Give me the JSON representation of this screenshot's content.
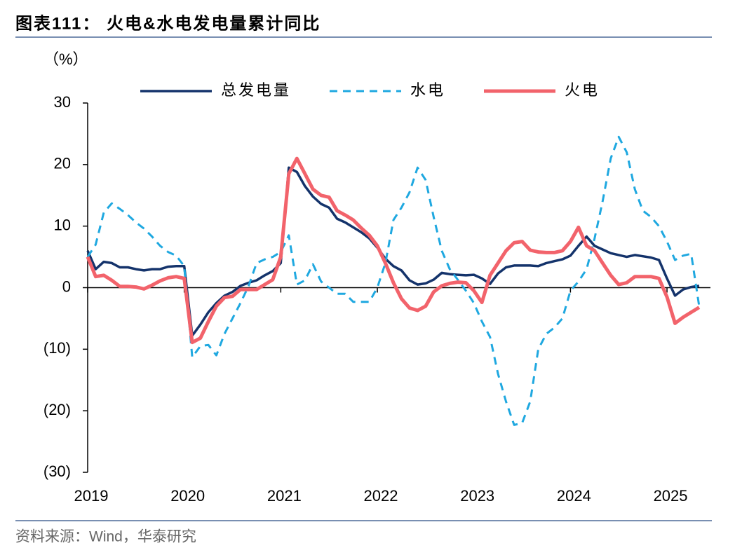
{
  "chart_data": {
    "type": "line",
    "title": "图表111： 火电&水电发电量累计同比",
    "y_axis_label": "（%）",
    "source": "资料来源：Wind，华泰研究",
    "xlim": [
      2019,
      2025.45
    ],
    "xticks": [
      2019,
      2020,
      2021,
      2022,
      2023,
      2024,
      2025
    ],
    "ylim": [
      -30,
      30
    ],
    "yticks": [
      30,
      20,
      10,
      0,
      {
        "value": -10,
        "label": "(10)"
      },
      {
        "value": -20,
        "label": "(20)"
      },
      {
        "value": -30,
        "label": "(30)"
      }
    ],
    "x": [
      2019.0,
      2019.083,
      2019.167,
      2019.25,
      2019.333,
      2019.417,
      2019.5,
      2019.583,
      2019.667,
      2019.75,
      2019.833,
      2019.917,
      2020.0,
      2020.083,
      2020.167,
      2020.25,
      2020.333,
      2020.417,
      2020.5,
      2020.583,
      2020.667,
      2020.75,
      2020.833,
      2020.917,
      2021.0,
      2021.083,
      2021.167,
      2021.25,
      2021.333,
      2021.417,
      2021.5,
      2021.583,
      2021.667,
      2021.75,
      2021.833,
      2021.917,
      2022.0,
      2022.083,
      2022.167,
      2022.25,
      2022.333,
      2022.417,
      2022.5,
      2022.583,
      2022.667,
      2022.75,
      2022.833,
      2022.917,
      2023.0,
      2023.083,
      2023.167,
      2023.25,
      2023.333,
      2023.417,
      2023.5,
      2023.583,
      2023.667,
      2023.75,
      2023.833,
      2023.917,
      2024.0,
      2024.083,
      2024.167,
      2024.25,
      2024.333,
      2024.417,
      2024.5,
      2024.583,
      2024.667,
      2024.75,
      2024.833,
      2024.917,
      2025.0,
      2025.083,
      2025.167,
      2025.25,
      2025.333
    ],
    "legend": "top",
    "series": [
      {
        "name": "总发电量",
        "color": "#14336b",
        "dashed": false,
        "values": [
          6.0,
          3.0,
          4.2,
          4.0,
          3.3,
          3.3,
          3.0,
          2.8,
          3.0,
          3.0,
          3.4,
          3.5,
          3.5,
          -7.8,
          -6.0,
          -4.0,
          -2.5,
          -1.3,
          -0.7,
          0.3,
          0.8,
          1.2,
          2.0,
          2.7,
          4.0,
          19.5,
          18.8,
          16.5,
          14.8,
          13.6,
          13.0,
          11.2,
          10.6,
          9.8,
          9.0,
          8.0,
          6.5,
          4.7,
          3.5,
          2.8,
          1.2,
          0.5,
          0.7,
          1.3,
          2.4,
          2.2,
          2.1,
          2.0,
          2.1,
          1.5,
          0.6,
          2.3,
          3.3,
          3.6,
          3.6,
          3.6,
          3.5,
          4.0,
          4.3,
          4.6,
          5.2,
          6.8,
          8.3,
          6.8,
          6.2,
          5.6,
          5.3,
          5.0,
          5.3,
          5.1,
          4.9,
          4.5,
          1.5,
          -1.3,
          -0.3,
          0.1,
          0.3
        ]
      },
      {
        "name": "水电",
        "color": "#1fa8e0",
        "dashed": true,
        "values": [
          5.0,
          7.0,
          12.2,
          13.7,
          12.8,
          11.8,
          10.6,
          9.6,
          8.3,
          6.8,
          5.8,
          5.2,
          3.5,
          -11.3,
          -9.5,
          -9.3,
          -11.0,
          -7.5,
          -5.0,
          -2.5,
          0.3,
          4.0,
          4.6,
          5.0,
          5.8,
          8.5,
          0.5,
          1.2,
          3.8,
          1.0,
          0.0,
          -1.0,
          -1.0,
          -2.3,
          -2.3,
          -2.3,
          0.0,
          4.0,
          11.0,
          13.0,
          15.5,
          19.5,
          17.5,
          11.5,
          6.0,
          3.0,
          1.3,
          -0.5,
          -2.5,
          -5.5,
          -8.0,
          -14.0,
          -18.5,
          -22.3,
          -22.0,
          -18.5,
          -10.0,
          -7.5,
          -6.5,
          -5.0,
          -0.5,
          1.0,
          3.0,
          8.0,
          14.0,
          21.0,
          24.5,
          22.0,
          16.0,
          12.5,
          11.5,
          10.0,
          7.5,
          4.5,
          5.2,
          5.5,
          -3.0
        ]
      },
      {
        "name": "火电",
        "color": "#f2636b",
        "dashed": false,
        "values": [
          5.0,
          1.8,
          2.0,
          1.2,
          0.2,
          0.2,
          0.1,
          -0.2,
          0.4,
          1.1,
          1.6,
          1.8,
          1.5,
          -8.9,
          -8.2,
          -5.5,
          -3.0,
          -1.6,
          -1.4,
          -0.3,
          -0.3,
          -0.3,
          0.5,
          1.3,
          5.0,
          18.5,
          21.0,
          18.5,
          16.0,
          15.0,
          14.7,
          12.5,
          11.8,
          11.0,
          9.7,
          8.5,
          6.8,
          4.0,
          0.8,
          -1.8,
          -3.3,
          -3.7,
          -3.0,
          -0.7,
          0.3,
          0.7,
          0.9,
          0.8,
          -0.5,
          -2.4,
          2.0,
          4.0,
          6.0,
          7.3,
          7.5,
          6.1,
          5.8,
          5.7,
          5.7,
          6.0,
          7.5,
          9.8,
          6.8,
          6.0,
          4.0,
          2.0,
          0.5,
          0.8,
          1.8,
          1.8,
          1.8,
          1.5,
          -1.5,
          -5.8,
          -4.8,
          -4.0,
          -3.2
        ]
      }
    ]
  }
}
